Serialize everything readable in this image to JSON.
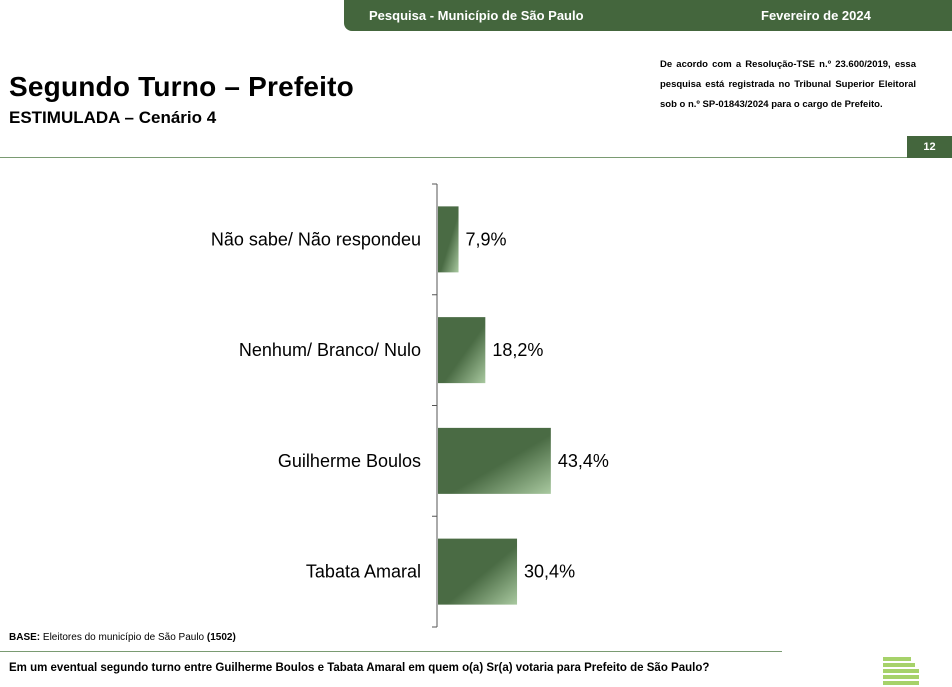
{
  "header": {
    "survey_label": "Pesquisa - Município de São Paulo",
    "date": "Fevereiro de 2024",
    "title": "Segundo Turno – Prefeito",
    "subtitle": "ESTIMULADA – Cenário 4",
    "legal_notice": "De acordo com a Resolução-TSE n.º 23.600/2019, essa pesquisa está registrada no Tribunal Superior Eleitoral sob o n.º SP-01843/2024 para o cargo de Prefeito.",
    "page_number": "12"
  },
  "chart_data": {
    "type": "bar",
    "orientation": "horizontal",
    "categories": [
      "Não sabe/ Não respondeu",
      "Nenhum/ Branco/ Nulo",
      "Guilherme Boulos",
      "Tabata Amaral"
    ],
    "values": [
      7.9,
      18.2,
      43.4,
      30.4
    ],
    "value_labels": [
      "7,9%",
      "18,2%",
      "43,4%",
      "30,4%"
    ],
    "unit": "%",
    "xlim": [
      0,
      100
    ],
    "bar_color": "#4a6b44",
    "bar_highlight": "#a9c9a0",
    "grid": false,
    "legend": "none"
  },
  "footer": {
    "base_label": "BASE:",
    "base_text": "Eleitores do município de São Paulo",
    "base_count": "(1502)",
    "question": "Em um eventual segundo turno entre Guilherme Boulos e Tabata Amaral em quem o(a) Sr(a) votaria para Prefeito de São Paulo?"
  },
  "colors": {
    "brand_green": "#44663d",
    "rule_green": "#7a9b72"
  }
}
